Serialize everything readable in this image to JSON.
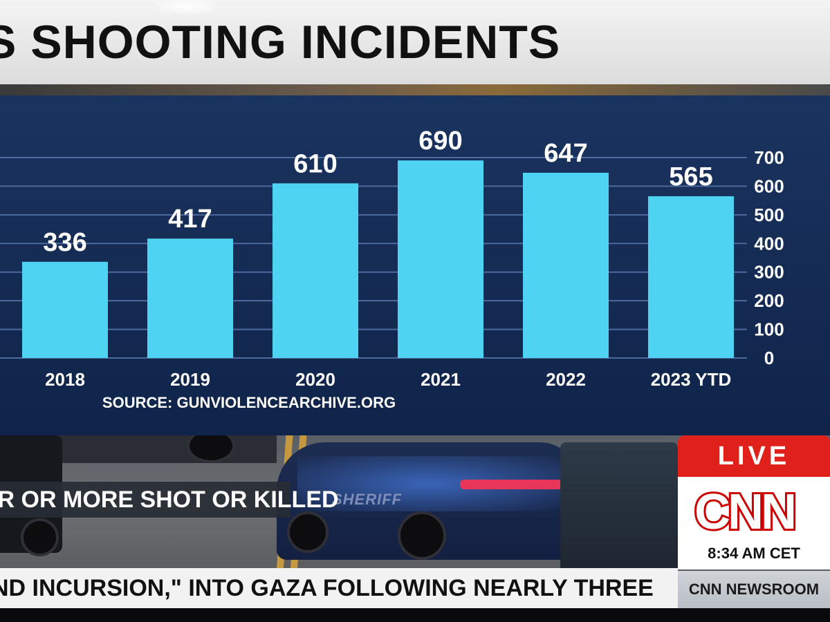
{
  "title": "S SHOOTING INCIDENTS",
  "chart_data": {
    "type": "bar",
    "categories": [
      "2018",
      "2019",
      "2020",
      "2021",
      "2022",
      "2023 YTD"
    ],
    "values": [
      336,
      417,
      610,
      690,
      647,
      565
    ],
    "data_labels": [
      "336",
      "417",
      "610",
      "690",
      "647",
      "565"
    ],
    "ylim": [
      0,
      700
    ],
    "yticks": [
      0,
      100,
      200,
      300,
      400,
      500,
      600,
      700
    ],
    "y_axis_side": "right",
    "grid": true,
    "bar_color": "#4fd3f2",
    "source": "SOURCE: GUNVIOLENCEARCHIVE.ORG"
  },
  "lower_third": "UR OR MORE SHOT OR KILLED",
  "ticker": "ND INCURSION,\" INTO GAZA FOLLOWING NEARLY THREE",
  "badge": {
    "live": "LIVE",
    "logo": "CNN",
    "time": "8:34 AM CET",
    "program": "CNN NEWSROOM"
  },
  "scene": {
    "car_marking": "SHERIFF"
  },
  "colors": {
    "panel": "#17305a",
    "bar": "#4fd3f2",
    "live_red": "#e0201b",
    "cnn_red": "#cc0000"
  }
}
